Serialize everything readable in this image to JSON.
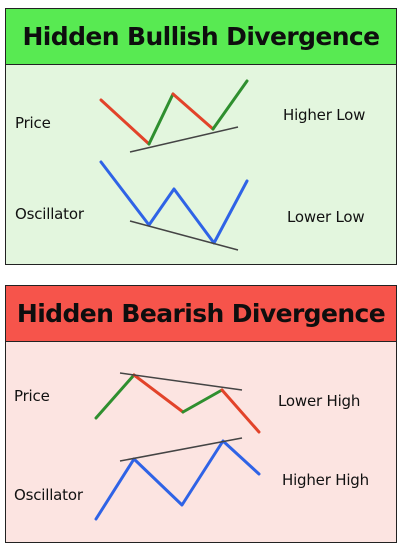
{
  "bullish": {
    "title": "Hidden Bullish Divergence",
    "price_label": "Price",
    "oscillator_label": "Oscillator",
    "price_note": "Higher Low",
    "oscillator_note": "Lower Low"
  },
  "bearish": {
    "title": "Hidden Bearish Divergence",
    "price_label": "Price",
    "oscillator_label": "Oscillator",
    "price_note": "Lower High",
    "oscillator_note": "Higher High"
  },
  "colors": {
    "bullish_header": "#58ea52",
    "bullish_panel": "#e3f6de",
    "bearish_header": "#f6544b",
    "bearish_panel": "#fce4e1",
    "up_segment": "#2f8f2f",
    "down_segment": "#e2432a",
    "oscillator_line": "#2f63e6",
    "trend_line": "#444444"
  },
  "icons": [
    "price-zigzag",
    "oscillator-zigzag",
    "divergence-trendline"
  ]
}
